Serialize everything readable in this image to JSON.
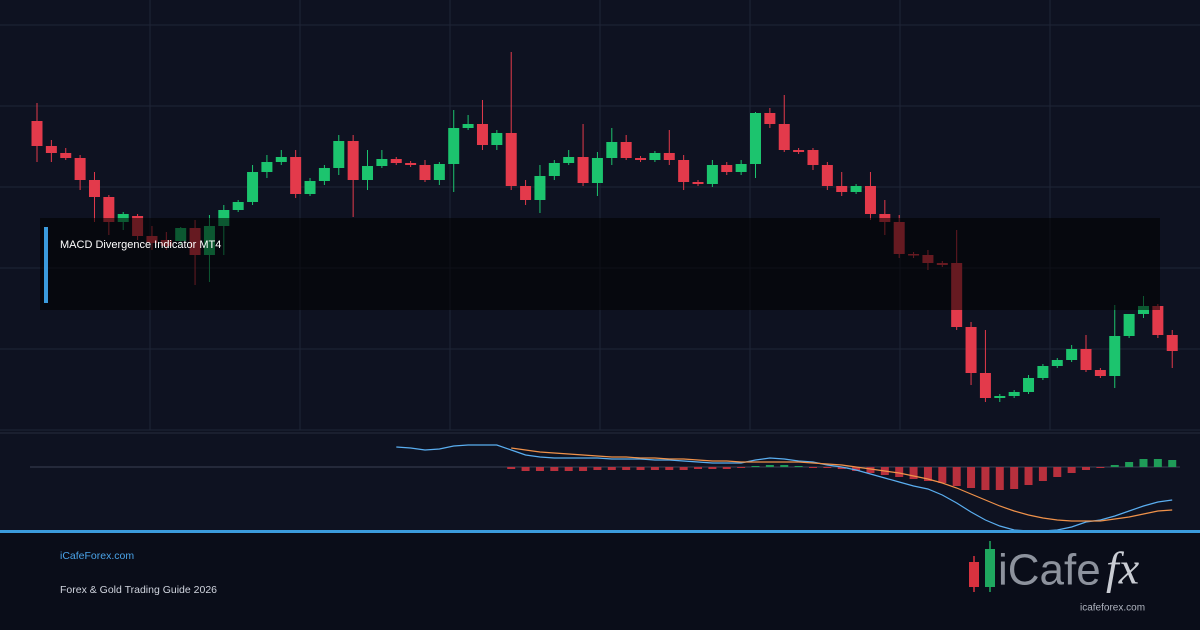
{
  "chart_data": [
    {
      "type": "candlestick",
      "open": [
        309,
        284,
        277,
        272,
        250,
        233,
        208,
        214,
        194,
        190,
        189,
        202,
        175,
        204,
        220,
        228,
        258,
        268,
        273,
        236,
        249,
        262,
        289,
        250,
        264,
        271,
        267,
        265,
        250,
        266,
        302,
        306,
        285,
        297,
        244,
        230,
        254,
        267,
        273,
        247,
        272,
        288,
        272,
        270,
        277,
        270,
        248,
        246,
        265,
        258,
        266,
        317,
        306,
        280,
        280,
        265,
        244,
        238,
        244,
        216,
        208,
        176,
        175,
        167,
        167,
        103,
        57,
        32,
        34,
        38,
        52,
        64,
        70,
        81,
        60,
        54,
        94,
        116,
        124,
        95
      ],
      "high": [
        327,
        290,
        282,
        275,
        258,
        235,
        218,
        216,
        204,
        198,
        203,
        210,
        215,
        225,
        230,
        265,
        275,
        280,
        280,
        252,
        265,
        295,
        295,
        280,
        280,
        273,
        269,
        270,
        268,
        320,
        315,
        330,
        300,
        378,
        250,
        265,
        270,
        280,
        306,
        278,
        302,
        295,
        274,
        279,
        300,
        275,
        250,
        270,
        268,
        270,
        318,
        322,
        335,
        282,
        282,
        268,
        258,
        246,
        258,
        230,
        215,
        178,
        180,
        169,
        200,
        108,
        100,
        36,
        40,
        55,
        66,
        72,
        85,
        95,
        62,
        125,
        116,
        134,
        126,
        100
      ],
      "low": [
        268,
        268,
        270,
        240,
        208,
        195,
        200,
        190,
        180,
        180,
        185,
        145,
        148,
        175,
        218,
        225,
        252,
        265,
        232,
        234,
        245,
        255,
        213,
        240,
        262,
        265,
        263,
        248,
        245,
        238,
        300,
        280,
        280,
        240,
        225,
        217,
        250,
        265,
        244,
        234,
        265,
        270,
        268,
        268,
        265,
        240,
        244,
        243,
        255,
        255,
        252,
        302,
        278,
        276,
        260,
        240,
        234,
        236,
        210,
        195,
        172,
        172,
        160,
        163,
        100,
        45,
        28,
        28,
        32,
        36,
        50,
        62,
        68,
        58,
        52,
        42,
        92,
        112,
        92,
        62
      ],
      "close": [
        284,
        277,
        272,
        250,
        233,
        208,
        216,
        194,
        187,
        184,
        202,
        175,
        204,
        220,
        228,
        258,
        268,
        273,
        236,
        249,
        262,
        289,
        250,
        264,
        271,
        267,
        265,
        250,
        266,
        302,
        306,
        285,
        297,
        244,
        230,
        254,
        267,
        273,
        247,
        272,
        288,
        272,
        270,
        277,
        270,
        248,
        246,
        265,
        258,
        266,
        317,
        306,
        280,
        278,
        265,
        244,
        238,
        244,
        216,
        208,
        176,
        175,
        167,
        165,
        103,
        57,
        32,
        34,
        38,
        52,
        64,
        70,
        81,
        60,
        54,
        94,
        116,
        124,
        95,
        79
      ],
      "ylim": [
        0,
        405
      ],
      "grid": true,
      "up_color": "#1cc46e",
      "down_color": "#e33a4b"
    },
    {
      "type": "macd",
      "histogram": {
        "values": [
          null,
          null,
          null,
          null,
          null,
          null,
          null,
          null,
          null,
          null,
          null,
          null,
          null,
          null,
          null,
          null,
          null,
          null,
          null,
          null,
          null,
          null,
          null,
          null,
          null,
          null,
          null,
          null,
          null,
          null,
          null,
          null,
          null,
          -2,
          -4,
          -4,
          -4,
          -4,
          -4,
          -3,
          -3,
          -3,
          -3,
          -3,
          -3,
          -3,
          -2,
          -2,
          -2,
          -1,
          1,
          2,
          2,
          1,
          -1,
          -1,
          -2,
          -4,
          -6,
          -8,
          -10,
          -12,
          -14,
          -16,
          -19,
          -21,
          -23,
          -23,
          -22,
          -18,
          -14,
          -10,
          -6,
          -3,
          -1,
          2,
          5,
          8,
          8,
          7
        ],
        "up_color": "#1f9c58",
        "down_color": "#b8303d"
      },
      "series": [
        {
          "color": "#5aaef0",
          "values": [
            null,
            null,
            null,
            null,
            null,
            null,
            null,
            null,
            null,
            null,
            null,
            null,
            null,
            null,
            null,
            null,
            null,
            null,
            null,
            null,
            null,
            null,
            null,
            null,
            null,
            20,
            19,
            17,
            18,
            21,
            22,
            22,
            22,
            17,
            12,
            10,
            9,
            9,
            9,
            9,
            8,
            8,
            8,
            7,
            7,
            6,
            5,
            4,
            4,
            4,
            7,
            9,
            8,
            6,
            5,
            2,
            0,
            -3,
            -7,
            -11,
            -15,
            -19,
            -22,
            -28,
            -36,
            -45,
            -53,
            -59,
            -63,
            -64,
            -64,
            -63,
            -60,
            -55,
            -53,
            -49,
            -44,
            -39,
            -35,
            -33
          ]
        },
        {
          "color": "#f0924a",
          "values": [
            null,
            null,
            null,
            null,
            null,
            null,
            null,
            null,
            null,
            null,
            null,
            null,
            null,
            null,
            null,
            null,
            null,
            null,
            null,
            null,
            null,
            null,
            null,
            null,
            null,
            null,
            null,
            null,
            null,
            null,
            null,
            null,
            null,
            19,
            17,
            15,
            14,
            13,
            12,
            11,
            10,
            10,
            9,
            9,
            8,
            8,
            7,
            6,
            6,
            5,
            5,
            5,
            5,
            5,
            4,
            3,
            2,
            0,
            -2,
            -4,
            -6,
            -9,
            -12,
            -16,
            -21,
            -27,
            -33,
            -39,
            -44,
            -48,
            -51,
            -53,
            -54,
            -54,
            -54,
            -52,
            -50,
            -47,
            -44,
            -43
          ]
        }
      ],
      "ylim": [
        -64,
        32
      ]
    }
  ],
  "overlay": {
    "title": "MACD Divergence Indicator MT4"
  },
  "footer": {
    "site": "iCafeForex.com",
    "tagline": "Forex & Gold Trading Guide 2026",
    "logo_left": "iCafe",
    "logo_right": "fx",
    "logo_url": "icafeforex.com"
  }
}
